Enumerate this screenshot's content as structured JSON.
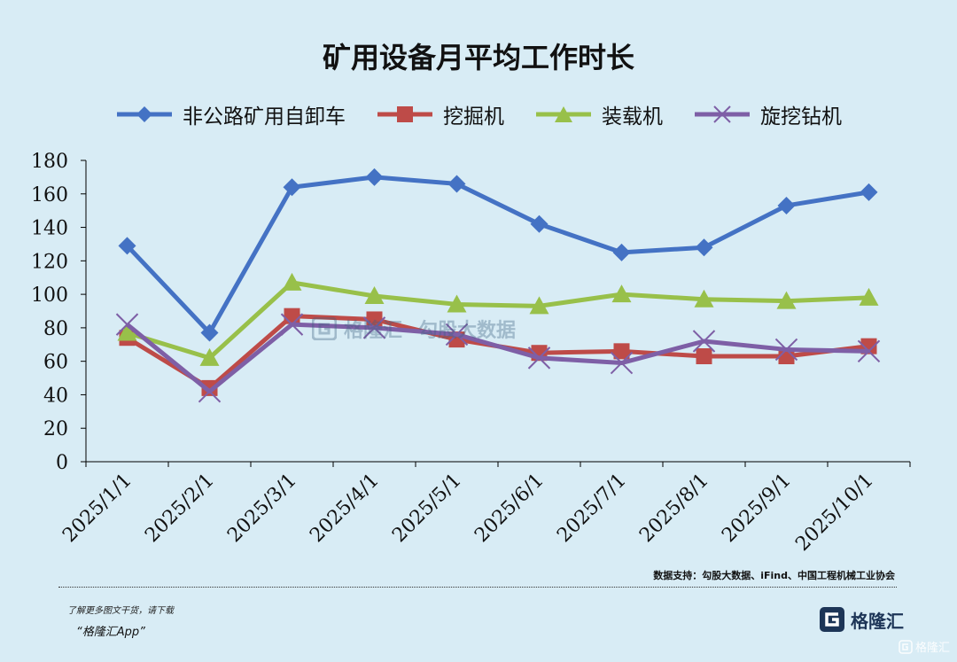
{
  "colors": {
    "series": [
      "#4472c4",
      "#be4b48",
      "#98c04a",
      "#7e5fa6"
    ],
    "axis": "#000000",
    "background": "#d8ecf5"
  },
  "chart_data": {
    "type": "line",
    "title": "矿用设备月平均工作时长",
    "xlabel": "",
    "ylabel": "",
    "x": [
      "2025/1/1",
      "2025/2/1",
      "2025/3/1",
      "2025/4/1",
      "2025/5/1",
      "2025/6/1",
      "2025/7/1",
      "2025/8/1",
      "2025/9/1",
      "2025/10/1"
    ],
    "ylim": [
      0,
      180
    ],
    "yticks": [
      0,
      20,
      40,
      60,
      80,
      100,
      120,
      140,
      160,
      180
    ],
    "grid": false,
    "legend_position": "top",
    "series": [
      {
        "name": "非公路矿用自卸车",
        "marker": "diamond",
        "values": [
          129,
          77,
          164,
          170,
          166,
          142,
          125,
          128,
          153,
          161
        ]
      },
      {
        "name": "挖掘机",
        "marker": "square",
        "values": [
          74,
          44,
          87,
          85,
          73,
          65,
          66,
          63,
          63,
          69
        ]
      },
      {
        "name": "装载机",
        "marker": "triangle",
        "values": [
          77,
          62,
          107,
          99,
          94,
          93,
          100,
          97,
          96,
          98
        ]
      },
      {
        "name": "旋挖钻机",
        "marker": "x",
        "values": [
          82,
          42,
          82,
          80,
          76,
          62,
          59,
          72,
          67,
          66
        ]
      }
    ]
  },
  "source_note": "数据支持：勾股大数据、iFind、中国工程机械工业协会",
  "promo": {
    "line1": "了解更多图文干货，请下载",
    "app": "“格隆汇App”"
  },
  "brand": {
    "logo_text": "格隆汇",
    "corner_text": "格隆汇",
    "watermark_a": "格隆汇",
    "watermark_b": "勾股大数据"
  }
}
